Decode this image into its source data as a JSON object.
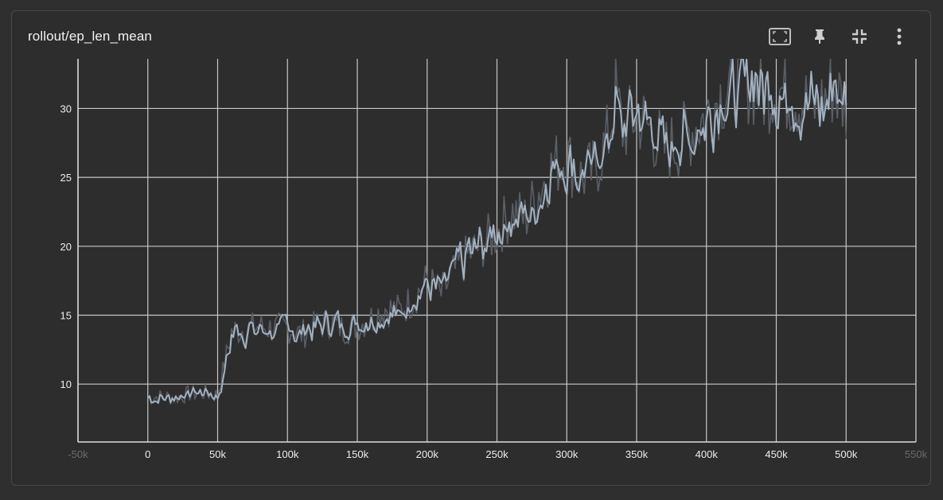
{
  "card": {
    "title": "rollout/ep_len_mean"
  },
  "toolbar": {
    "buttons": [
      {
        "name": "fit-domain-button",
        "icon": "fit-to-screen-icon"
      },
      {
        "name": "pin-button",
        "icon": "pin-icon"
      },
      {
        "name": "collapse-button",
        "icon": "collapse-icon"
      },
      {
        "name": "more-button",
        "icon": "more-vertical-icon"
      }
    ]
  },
  "chart_data": {
    "type": "line",
    "title": "rollout/ep_len_mean",
    "xlabel": "",
    "ylabel": "",
    "xlim": [
      -50000,
      550000
    ],
    "ylim": [
      5.8,
      33.6
    ],
    "x_ticks": [
      -50000,
      0,
      50000,
      100000,
      150000,
      200000,
      250000,
      300000,
      350000,
      400000,
      450000,
      500000,
      550000
    ],
    "x_tick_labels": [
      "-50k",
      "0",
      "50k",
      "100k",
      "150k",
      "200k",
      "250k",
      "300k",
      "350k",
      "400k",
      "450k",
      "500k",
      "550k"
    ],
    "y_ticks": [
      10,
      15,
      20,
      25,
      30
    ],
    "y_tick_labels": [
      "10",
      "15",
      "20",
      "25",
      "30"
    ],
    "grid": true,
    "colors": {
      "smoothed": "#a2b1c0",
      "raw": "#5a5f66"
    },
    "series": [
      {
        "x": [
          0,
          10000,
          20000,
          30000,
          40000,
          50000,
          55000,
          60000,
          70000,
          80000,
          90000,
          100000,
          110000,
          120000,
          130000,
          140000,
          150000,
          160000,
          170000,
          180000,
          190000,
          200000,
          210000,
          220000,
          230000,
          240000,
          250000,
          260000,
          270000,
          280000,
          290000,
          300000,
          310000,
          320000,
          330000,
          335000,
          340000,
          350000,
          360000,
          370000,
          380000,
          390000,
          400000,
          410000,
          420000,
          430000,
          440000,
          450000,
          460000,
          470000,
          480000,
          490000,
          500000
        ],
        "values": [
          9.0,
          9.1,
          9.0,
          9.3,
          9.4,
          9.2,
          11.5,
          13.8,
          14.0,
          14.2,
          14.0,
          14.1,
          13.6,
          14.2,
          14.5,
          14.0,
          14.2,
          14.8,
          15.5,
          15.3,
          16.2,
          17.5,
          16.5,
          18.2,
          19.4,
          20.2,
          21.0,
          22.5,
          22.0,
          24.0,
          25.8,
          26.5,
          25.0,
          25.5,
          28.0,
          31.0,
          28.5,
          29.5,
          28.5,
          27.0,
          27.5,
          28.5,
          29.5,
          31.0,
          31.8,
          32.0,
          31.0,
          31.5,
          31.0,
          30.5,
          30.0,
          31.5,
          30.2
        ]
      }
    ]
  }
}
